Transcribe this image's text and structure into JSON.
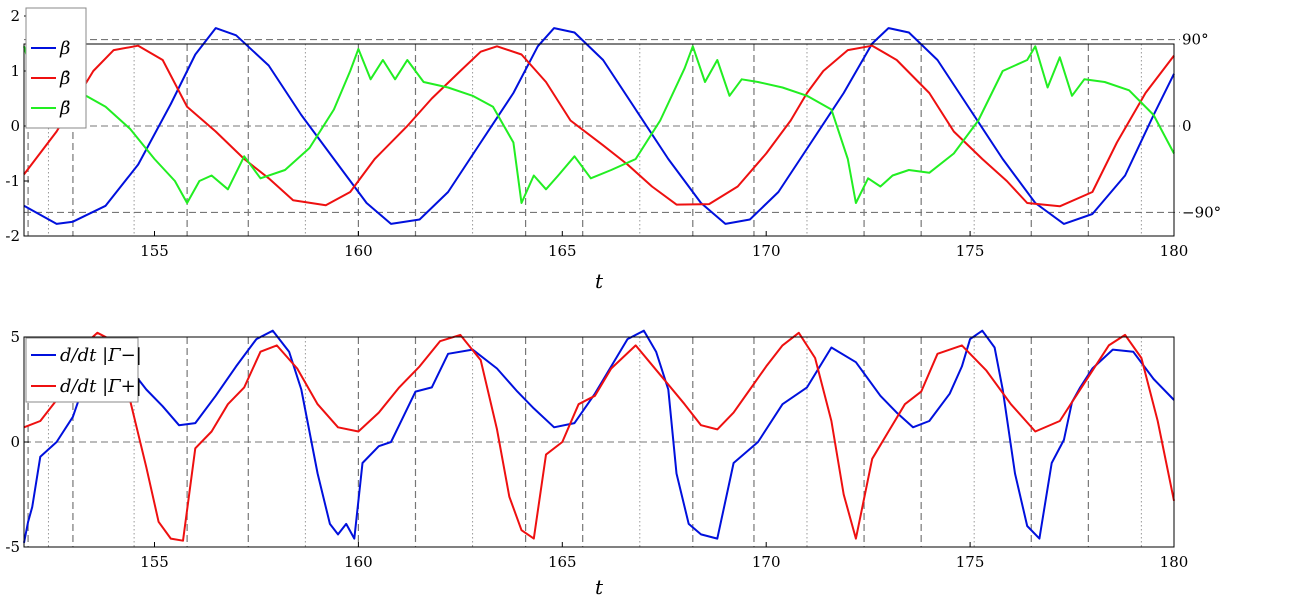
{
  "chart_data": [
    {
      "type": "line",
      "xlabel": "t",
      "ylabel": "",
      "xlim": [
        151.8,
        180
      ],
      "ylim": [
        -2,
        2
      ],
      "xticks": [
        "155",
        "160",
        "165",
        "170",
        "175",
        "180"
      ],
      "yticks": [
        "-2",
        "-1",
        "0",
        "1",
        "2"
      ],
      "right_ticks": [
        {
          "y": 1.5708,
          "label": "90°"
        },
        {
          "y": 0,
          "label": "0"
        },
        {
          "y": -1.5708,
          "label": "−90°"
        }
      ],
      "reference_lines": [
        1.5708,
        0,
        -1.5708
      ],
      "legend": {
        "location": "top-left",
        "entries": [
          "β",
          "β̇",
          "β̈"
        ]
      },
      "colors": {
        "beta": "#0010dd",
        "beta_dot": "#ee1010",
        "beta_ddot": "#22ee22"
      },
      "series": [
        {
          "name": "β",
          "x": [
            151.8,
            152.6,
            153.0,
            153.8,
            154.6,
            155.4,
            156.0,
            156.5,
            157.0,
            157.8,
            158.6,
            159.4,
            160.2,
            160.8,
            161.5,
            162.2,
            163.0,
            163.8,
            164.4,
            164.8,
            165.3,
            166.0,
            166.8,
            167.6,
            168.4,
            169.0,
            169.6,
            170.3,
            171.1,
            171.9,
            172.6,
            173.0,
            173.5,
            174.2,
            175.0,
            175.8,
            176.6,
            177.3,
            178.0,
            178.8,
            179.5,
            180.0
          ],
          "y": [
            -1.45,
            -1.78,
            -1.74,
            -1.45,
            -0.7,
            0.4,
            1.3,
            1.78,
            1.65,
            1.1,
            0.2,
            -0.6,
            -1.4,
            -1.78,
            -1.7,
            -1.2,
            -0.3,
            0.6,
            1.45,
            1.78,
            1.7,
            1.2,
            0.3,
            -0.6,
            -1.4,
            -1.78,
            -1.7,
            -1.2,
            -0.3,
            0.6,
            1.5,
            1.78,
            1.7,
            1.2,
            0.3,
            -0.6,
            -1.4,
            -1.78,
            -1.6,
            -0.9,
            0.2,
            0.95
          ]
        },
        {
          "name": "β̇",
          "x": [
            151.8,
            152.6,
            153.5,
            154.0,
            154.6,
            155.2,
            155.8,
            156.5,
            157.2,
            157.8,
            158.4,
            159.2,
            159.8,
            160.4,
            161.2,
            161.8,
            162.5,
            163.0,
            163.4,
            164.0,
            164.6,
            165.2,
            166.0,
            166.6,
            167.2,
            167.8,
            168.6,
            169.3,
            170.0,
            170.6,
            171.0,
            171.4,
            172.0,
            172.6,
            173.2,
            174.0,
            174.6,
            175.3,
            175.9,
            176.4,
            177.2,
            178.0,
            178.6,
            179.3,
            180.0
          ],
          "y": [
            -0.88,
            -0.1,
            1.0,
            1.38,
            1.46,
            1.2,
            0.35,
            -0.1,
            -0.6,
            -0.95,
            -1.35,
            -1.44,
            -1.2,
            -0.6,
            0.0,
            0.5,
            1.0,
            1.35,
            1.45,
            1.3,
            0.8,
            0.1,
            -0.35,
            -0.7,
            -1.1,
            -1.43,
            -1.42,
            -1.1,
            -0.5,
            0.1,
            0.6,
            1.0,
            1.38,
            1.46,
            1.2,
            0.6,
            -0.1,
            -0.6,
            -1.0,
            -1.4,
            -1.46,
            -1.2,
            -0.3,
            0.6,
            1.28
          ]
        },
        {
          "name": "β̈",
          "x": [
            151.8,
            151.9,
            152.0,
            152.6,
            153.2,
            153.8,
            154.4,
            155.0,
            155.5,
            155.8,
            156.1,
            156.4,
            156.8,
            157.2,
            157.6,
            158.2,
            158.8,
            159.4,
            159.8,
            160.0,
            160.3,
            160.6,
            160.9,
            161.2,
            161.6,
            162.2,
            162.8,
            163.3,
            163.8,
            164.0,
            164.3,
            164.6,
            164.9,
            165.3,
            165.7,
            166.2,
            166.8,
            167.4,
            168.0,
            168.2,
            168.5,
            168.8,
            169.1,
            169.4,
            169.8,
            170.4,
            171.0,
            171.6,
            172.0,
            172.2,
            172.5,
            172.8,
            173.1,
            173.5,
            174.0,
            174.6,
            175.2,
            175.8,
            176.4,
            176.6,
            176.9,
            177.2,
            177.5,
            177.8,
            178.3,
            178.9,
            179.5,
            180.0
          ],
          "y": [
            1.45,
            1.2,
            1.3,
            0.78,
            0.6,
            0.35,
            -0.05,
            -0.6,
            -1.0,
            -1.4,
            -1.0,
            -0.9,
            -1.15,
            -0.55,
            -0.95,
            -0.8,
            -0.4,
            0.3,
            1.0,
            1.4,
            0.85,
            1.2,
            0.85,
            1.2,
            0.8,
            0.7,
            0.55,
            0.35,
            -0.3,
            -1.4,
            -0.9,
            -1.15,
            -0.9,
            -0.55,
            -0.95,
            -0.8,
            -0.6,
            0.1,
            1.05,
            1.45,
            0.8,
            1.2,
            0.55,
            0.85,
            0.8,
            0.7,
            0.55,
            0.3,
            -0.6,
            -1.4,
            -0.95,
            -1.1,
            -0.9,
            -0.8,
            -0.85,
            -0.5,
            0.1,
            1.0,
            1.2,
            1.45,
            0.7,
            1.25,
            0.55,
            0.85,
            0.8,
            0.65,
            0.2,
            -0.5
          ]
        }
      ]
    },
    {
      "type": "line",
      "xlabel": "t",
      "ylabel": "",
      "xlim": [
        151.8,
        180
      ],
      "ylim": [
        -5,
        5
      ],
      "xticks": [
        "155",
        "160",
        "165",
        "170",
        "175",
        "180"
      ],
      "yticks": [
        "-5",
        "0",
        "5"
      ],
      "reference_lines": [
        0
      ],
      "legend": {
        "location": "top-left",
        "entries": [
          "d/dt |Γ−|",
          "d/dt |Γ+|"
        ]
      },
      "colors": {
        "gamma_minus": "#0010dd",
        "gamma_plus": "#ee1010"
      },
      "series": [
        {
          "name": "d/dt |Γ−|",
          "x": [
            151.8,
            151.9,
            152.0,
            152.2,
            152.6,
            153.0,
            153.6,
            154.2,
            154.8,
            155.2,
            155.6,
            156.0,
            156.5,
            157.0,
            157.5,
            157.9,
            158.3,
            158.6,
            159.0,
            159.3,
            159.5,
            159.7,
            159.9,
            160.1,
            160.5,
            160.8,
            161.0,
            161.4,
            161.8,
            162.2,
            162.8,
            163.4,
            163.9,
            164.3,
            164.8,
            165.3,
            165.8,
            166.2,
            166.6,
            167.0,
            167.3,
            167.6,
            167.8,
            168.1,
            168.4,
            168.8,
            169.2,
            169.8,
            170.4,
            171.0,
            171.6,
            172.2,
            172.8,
            173.2,
            173.6,
            174.0,
            174.5,
            174.8,
            175.0,
            175.3,
            175.6,
            175.8,
            176.1,
            176.4,
            176.7,
            177.0,
            177.3,
            177.5,
            177.7,
            178.0,
            178.5,
            179.0,
            179.5,
            180.0
          ],
          "y": [
            -4.8,
            -3.8,
            -3.1,
            -0.7,
            0.0,
            1.2,
            4.6,
            4.0,
            2.5,
            1.7,
            0.8,
            0.9,
            2.2,
            3.6,
            4.9,
            5.3,
            4.3,
            2.5,
            -1.5,
            -3.9,
            -4.4,
            -3.9,
            -4.6,
            -1.0,
            -0.2,
            0.0,
            0.8,
            2.4,
            2.6,
            4.2,
            4.4,
            3.5,
            2.4,
            1.6,
            0.7,
            0.9,
            2.3,
            3.6,
            4.9,
            5.3,
            4.3,
            2.5,
            -1.5,
            -3.9,
            -4.4,
            -4.6,
            -1.0,
            0.0,
            1.8,
            2.6,
            4.5,
            3.8,
            2.2,
            1.4,
            0.7,
            1.0,
            2.3,
            3.6,
            4.9,
            5.3,
            4.5,
            2.5,
            -1.5,
            -4.0,
            -4.6,
            -1.0,
            0.1,
            1.9,
            2.6,
            3.5,
            4.4,
            4.3,
            3.0,
            2.0
          ]
        },
        {
          "name": "d/dt |Γ+|",
          "x": [
            151.8,
            152.2,
            152.8,
            153.2,
            153.6,
            154.0,
            154.4,
            154.8,
            155.1,
            155.4,
            155.7,
            156.0,
            156.4,
            156.8,
            157.2,
            157.6,
            158.0,
            158.5,
            159.0,
            159.5,
            160.0,
            160.5,
            161.0,
            161.5,
            162.0,
            162.5,
            163.0,
            163.4,
            163.7,
            164.0,
            164.3,
            164.6,
            165.0,
            165.4,
            165.8,
            166.2,
            166.8,
            167.4,
            168.0,
            168.4,
            168.8,
            169.2,
            169.6,
            170.0,
            170.4,
            170.8,
            171.2,
            171.6,
            171.9,
            172.2,
            172.6,
            173.0,
            173.4,
            173.8,
            174.2,
            174.8,
            175.4,
            176.0,
            176.6,
            177.2,
            177.8,
            178.4,
            178.8,
            179.2,
            179.6,
            180.0
          ],
          "y": [
            0.7,
            1.0,
            2.5,
            4.5,
            5.2,
            4.8,
            2.0,
            -1.2,
            -3.8,
            -4.6,
            -4.7,
            -0.3,
            0.5,
            1.8,
            2.6,
            4.3,
            4.6,
            3.5,
            1.8,
            0.7,
            0.5,
            1.4,
            2.6,
            3.6,
            4.8,
            5.1,
            3.9,
            0.6,
            -2.6,
            -4.2,
            -4.6,
            -0.6,
            0.0,
            1.8,
            2.2,
            3.5,
            4.6,
            3.2,
            1.8,
            0.8,
            0.6,
            1.4,
            2.5,
            3.6,
            4.6,
            5.2,
            4.0,
            1.0,
            -2.5,
            -4.6,
            -0.8,
            0.5,
            1.8,
            2.4,
            4.2,
            4.6,
            3.4,
            1.8,
            0.5,
            1.0,
            2.8,
            4.6,
            5.1,
            4.0,
            1.0,
            -2.8
          ]
        }
      ]
    }
  ],
  "markers": {
    "dashed_t": [
      151.9,
      153.0,
      155.8,
      157.3,
      160.0,
      161.4,
      164.1,
      165.5,
      168.2,
      169.7,
      172.4,
      173.8,
      176.5,
      177.9
    ],
    "dotted_t": [
      152.4,
      154.5,
      158.7,
      162.8,
      166.9,
      171.0,
      175.1,
      179.2
    ]
  }
}
